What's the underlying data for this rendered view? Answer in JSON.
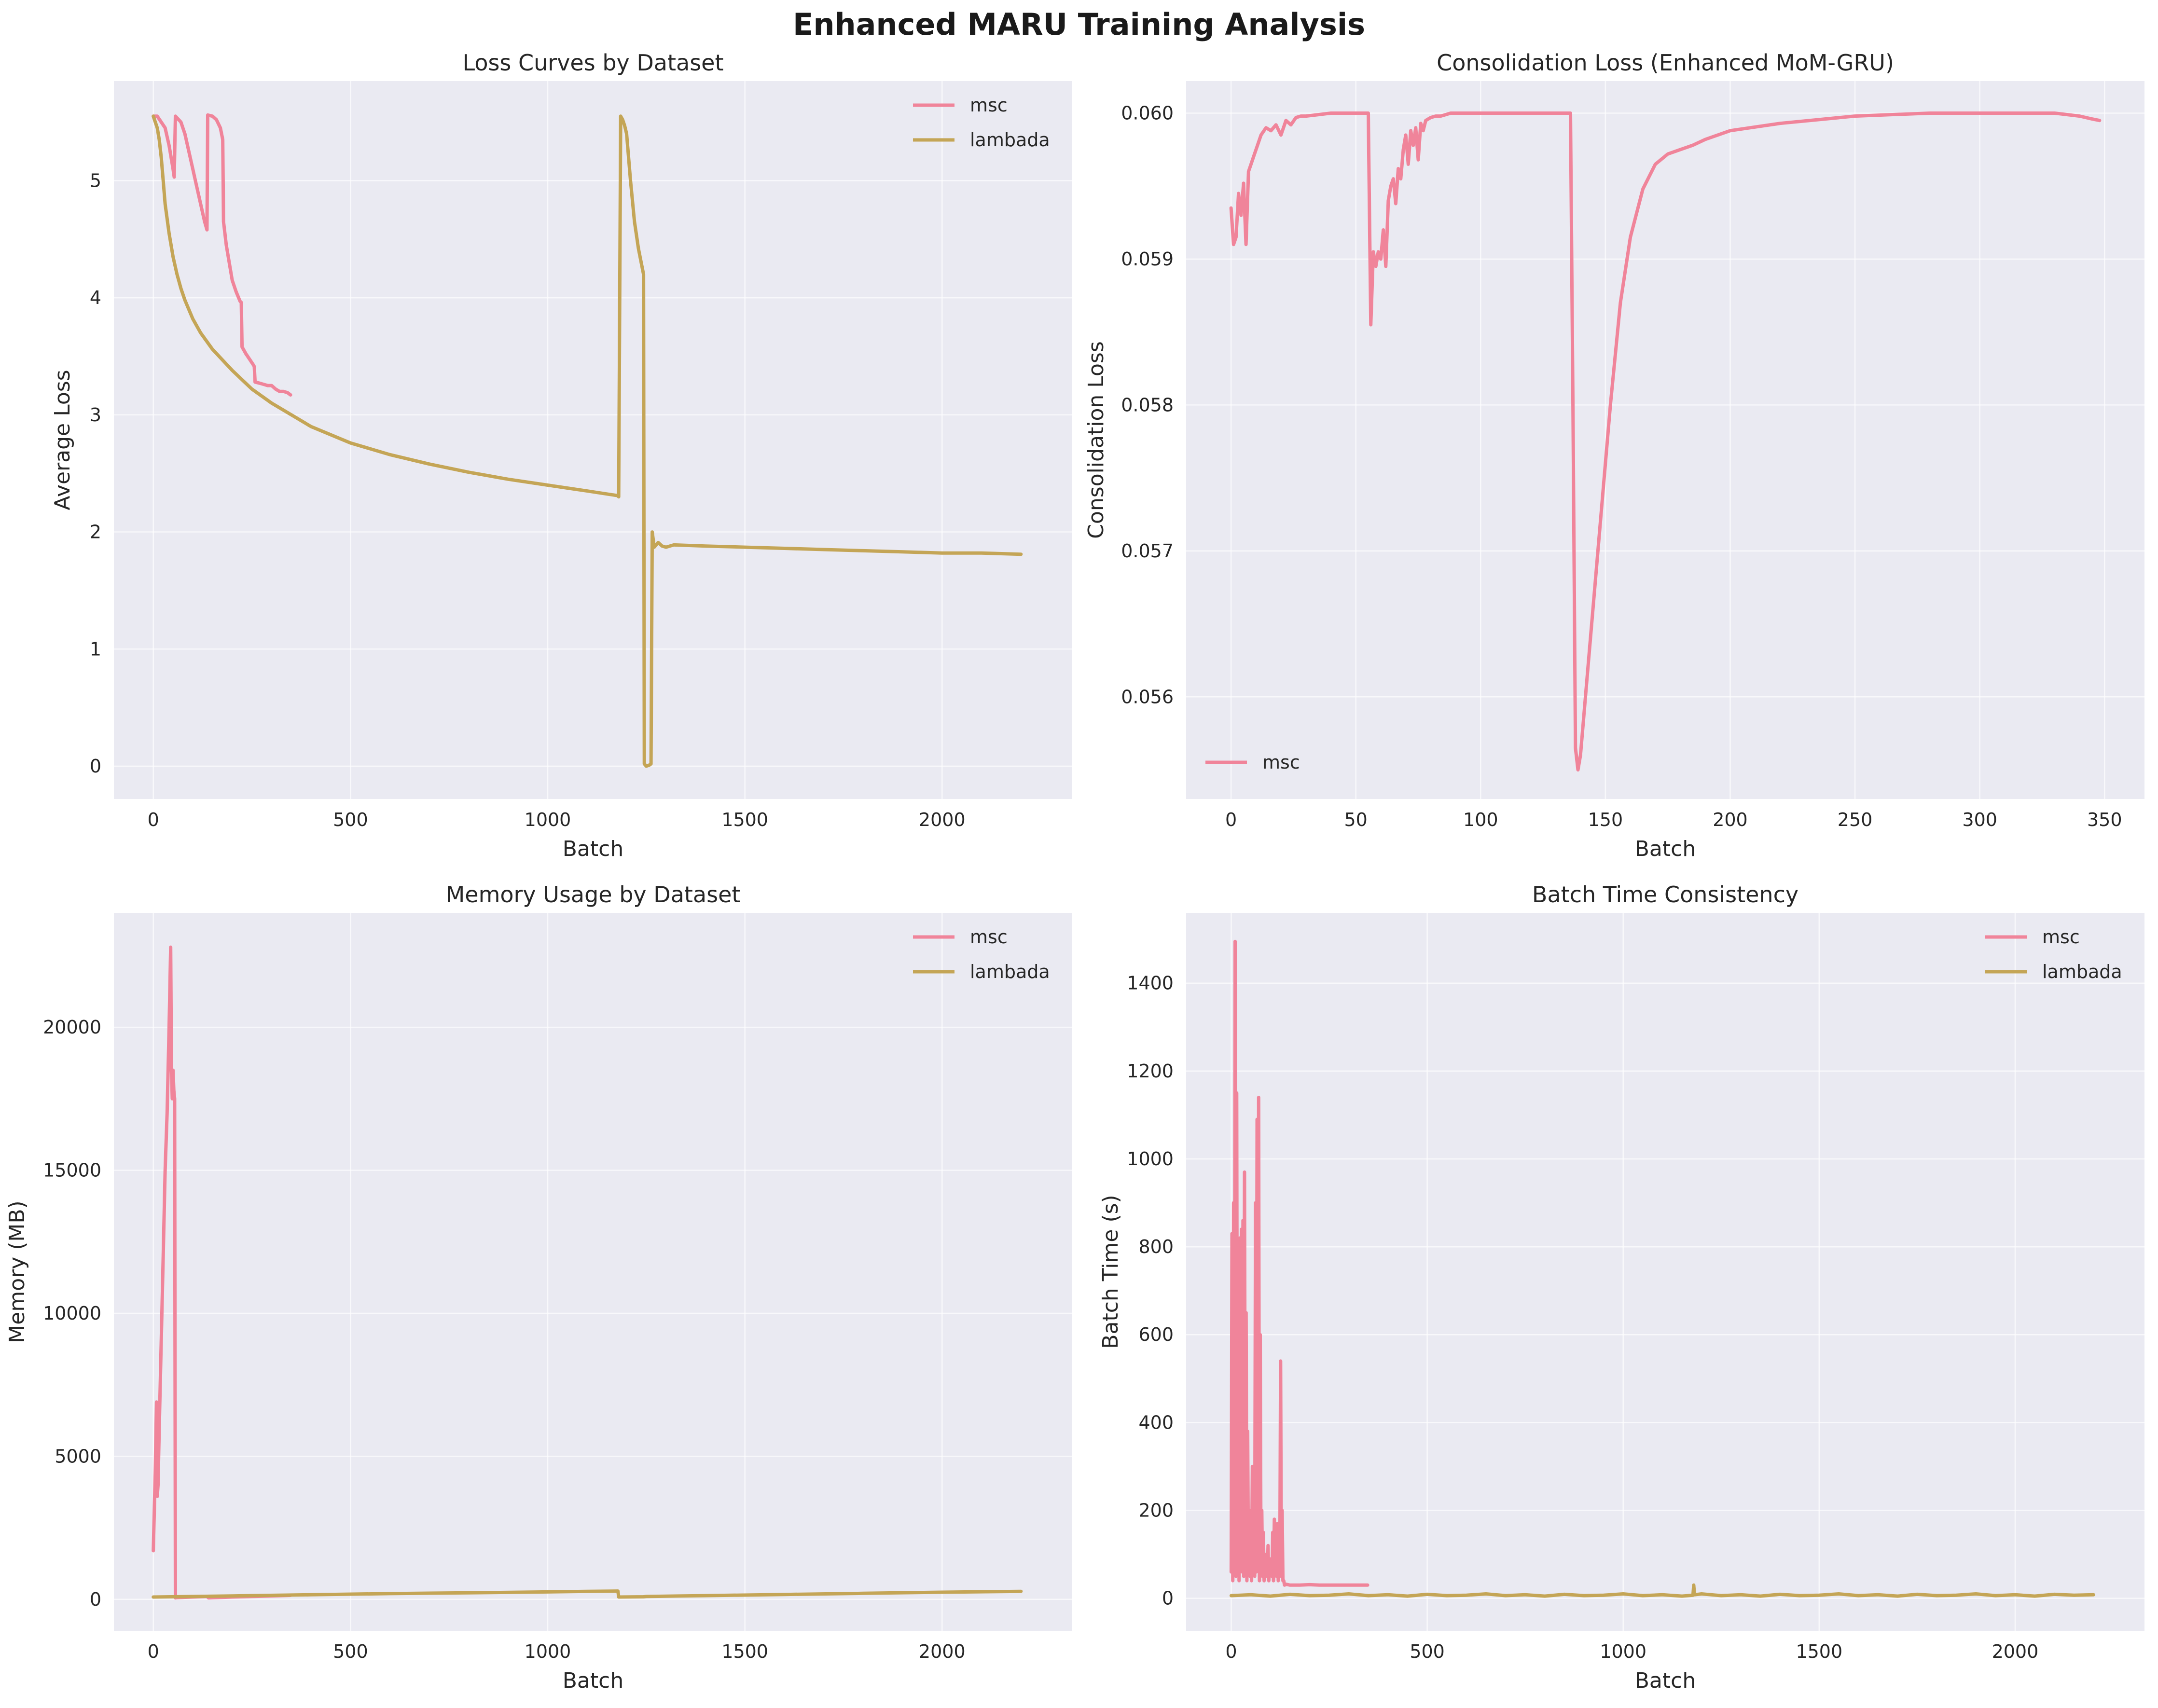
{
  "suptitle": "Enhanced MARU Training Analysis",
  "colors": {
    "msc": "#f0849a",
    "lambada": "#c4a556",
    "panel_bg": "#eaeaf2",
    "grid": "#ffffff",
    "text": "#262626"
  },
  "chart_data": [
    {
      "type": "line",
      "title": "Loss Curves by Dataset",
      "xlabel": "Batch",
      "ylabel": "Average Loss",
      "xlim": [
        -100,
        2330
      ],
      "ylim": [
        -0.28,
        5.85
      ],
      "xticks": [
        0,
        500,
        1000,
        1500,
        2000
      ],
      "yticks": [
        0,
        1,
        2,
        3,
        4,
        5
      ],
      "grid": true,
      "legend": "top-right",
      "series": [
        {
          "name": "msc",
          "color": "#f0849a",
          "x": [
            0,
            10,
            20,
            30,
            40,
            50,
            53,
            56,
            70,
            80,
            90,
            100,
            110,
            120,
            130,
            136,
            138,
            150,
            160,
            170,
            176,
            178,
            185,
            200,
            210,
            220,
            223,
            225,
            235,
            245,
            255,
            256,
            258,
            270,
            280,
            290,
            300,
            310,
            320,
            330,
            340,
            348
          ],
          "y": [
            5.55,
            5.55,
            5.5,
            5.45,
            5.3,
            5.1,
            5.03,
            5.55,
            5.5,
            5.4,
            5.25,
            5.1,
            4.95,
            4.8,
            4.65,
            4.58,
            5.56,
            5.55,
            5.52,
            5.45,
            5.35,
            4.65,
            4.45,
            4.15,
            4.05,
            3.97,
            3.96,
            3.58,
            3.52,
            3.47,
            3.42,
            3.41,
            3.28,
            3.27,
            3.26,
            3.25,
            3.25,
            3.22,
            3.2,
            3.2,
            3.19,
            3.17
          ]
        },
        {
          "name": "lambada",
          "color": "#c4a556",
          "x": [
            0,
            5,
            10,
            15,
            20,
            25,
            30,
            40,
            50,
            60,
            70,
            80,
            100,
            120,
            150,
            200,
            250,
            300,
            400,
            500,
            600,
            700,
            800,
            900,
            1000,
            1100,
            1178,
            1180,
            1185,
            1190,
            1195,
            1200,
            1210,
            1220,
            1230,
            1240,
            1243,
            1245,
            1250,
            1258,
            1262,
            1265,
            1270,
            1280,
            1290,
            1300,
            1310,
            1320,
            1400,
            1500,
            1600,
            1700,
            1800,
            1900,
            2000,
            2100,
            2200
          ],
          "y": [
            5.55,
            5.5,
            5.45,
            5.35,
            5.2,
            5.0,
            4.8,
            4.55,
            4.35,
            4.2,
            4.08,
            3.98,
            3.82,
            3.7,
            3.56,
            3.38,
            3.22,
            3.1,
            2.9,
            2.76,
            2.66,
            2.58,
            2.51,
            2.45,
            2.4,
            2.35,
            2.31,
            2.3,
            5.55,
            5.52,
            5.47,
            5.4,
            5.0,
            4.65,
            4.42,
            4.25,
            4.2,
            0.02,
            0.0,
            0.01,
            0.02,
            2.0,
            1.87,
            1.91,
            1.88,
            1.87,
            1.88,
            1.89,
            1.88,
            1.87,
            1.86,
            1.85,
            1.84,
            1.83,
            1.82,
            1.82,
            1.81
          ]
        }
      ]
    },
    {
      "type": "line",
      "title": "Consolidation Loss (Enhanced MoM-GRU)",
      "xlabel": "Batch",
      "ylabel": "Consolidation Loss",
      "xlim": [
        -18,
        366
      ],
      "ylim": [
        0.0553,
        0.06022
      ],
      "xticks": [
        0,
        50,
        100,
        150,
        200,
        250,
        300,
        350
      ],
      "yticks": [
        0.056,
        0.057,
        0.058,
        0.059,
        0.06
      ],
      "yticklabels": [
        "0.056",
        "0.057",
        "0.058",
        "0.059",
        "0.060"
      ],
      "grid": true,
      "legend": "bottom-left",
      "series": [
        {
          "name": "msc",
          "color": "#f0849a",
          "x": [
            0,
            1,
            2,
            3,
            4,
            5,
            6,
            7,
            8,
            9,
            10,
            12,
            14,
            16,
            18,
            20,
            22,
            24,
            26,
            28,
            30,
            35,
            40,
            45,
            50,
            54,
            55,
            56,
            57,
            58,
            59,
            60,
            61,
            62,
            63,
            64,
            65,
            66,
            67,
            68,
            69,
            70,
            71,
            72,
            73,
            74,
            75,
            76,
            77,
            78,
            80,
            82,
            84,
            86,
            88,
            90,
            95,
            100,
            110,
            120,
            130,
            136,
            137,
            138,
            139,
            140,
            142,
            145,
            148,
            152,
            156,
            160,
            165,
            170,
            175,
            180,
            185,
            190,
            200,
            220,
            250,
            280,
            300,
            320,
            330,
            340,
            345,
            348
          ],
          "y": [
            0.05935,
            0.0591,
            0.05915,
            0.05945,
            0.0593,
            0.05952,
            0.0591,
            0.0596,
            0.05965,
            0.0597,
            0.05975,
            0.05985,
            0.0599,
            0.05988,
            0.05992,
            0.05985,
            0.05995,
            0.05992,
            0.05997,
            0.05998,
            0.05998,
            0.05999,
            0.06,
            0.06,
            0.06,
            0.06,
            0.06,
            0.05855,
            0.05905,
            0.05895,
            0.05905,
            0.059,
            0.0592,
            0.05895,
            0.0594,
            0.0595,
            0.05955,
            0.05938,
            0.05962,
            0.05955,
            0.05975,
            0.05985,
            0.05965,
            0.05988,
            0.05978,
            0.0599,
            0.05968,
            0.05993,
            0.05988,
            0.05995,
            0.05997,
            0.05998,
            0.05998,
            0.05999,
            0.06,
            0.06,
            0.06,
            0.06,
            0.06,
            0.06,
            0.06,
            0.06,
            0.058,
            0.05565,
            0.0555,
            0.0556,
            0.056,
            0.0566,
            0.0572,
            0.058,
            0.0587,
            0.05915,
            0.05948,
            0.05965,
            0.05972,
            0.05975,
            0.05978,
            0.05982,
            0.05988,
            0.05993,
            0.05998,
            0.06,
            0.06,
            0.06,
            0.06,
            0.05998,
            0.05996,
            0.05995
          ]
        }
      ]
    },
    {
      "type": "line",
      "title": "Memory Usage by Dataset",
      "xlabel": "Batch",
      "ylabel": "Memory (MB)",
      "xlim": [
        -100,
        2330
      ],
      "ylim": [
        -1100,
        24000
      ],
      "xticks": [
        0,
        500,
        1000,
        1500,
        2000
      ],
      "yticks": [
        0,
        5000,
        10000,
        15000,
        20000
      ],
      "grid": true,
      "legend": "top-right",
      "series": [
        {
          "name": "msc",
          "color": "#f0849a",
          "x": [
            0,
            5,
            8,
            10,
            12,
            15,
            20,
            25,
            30,
            35,
            40,
            44,
            46,
            48,
            50,
            52,
            54,
            56,
            60,
            100,
            136,
            140,
            200,
            250,
            300,
            348
          ],
          "y": [
            1700,
            4500,
            6900,
            3600,
            4000,
            6000,
            9000,
            12000,
            15000,
            17000,
            20000,
            22800,
            18500,
            17500,
            18500,
            17800,
            17500,
            50,
            60,
            80,
            100,
            50,
            80,
            100,
            120,
            140
          ]
        },
        {
          "name": "lambada",
          "color": "#c4a556",
          "x": [
            0,
            200,
            400,
            600,
            800,
            1000,
            1100,
            1178,
            1180,
            1243,
            1250,
            1400,
            1600,
            1800,
            2000,
            2200
          ],
          "y": [
            80,
            120,
            160,
            200,
            230,
            260,
            280,
            290,
            80,
            90,
            100,
            130,
            170,
            210,
            250,
            280
          ]
        }
      ]
    },
    {
      "type": "line",
      "title": "Batch Time Consistency",
      "xlabel": "Batch",
      "ylabel": "Batch Time (s)",
      "xlim": [
        -115,
        2330
      ],
      "ylim": [
        -74,
        1560
      ],
      "xticks": [
        0,
        500,
        1000,
        1500,
        2000
      ],
      "yticks": [
        0,
        200,
        400,
        600,
        800,
        1000,
        1200,
        1400
      ],
      "grid": true,
      "legend": "top-right",
      "series": [
        {
          "name": "msc",
          "color": "#f0849a",
          "x": [
            0,
            2,
            4,
            6,
            8,
            10,
            12,
            14,
            16,
            18,
            20,
            22,
            24,
            26,
            28,
            30,
            32,
            34,
            36,
            38,
            40,
            42,
            44,
            46,
            48,
            50,
            52,
            54,
            56,
            58,
            60,
            62,
            64,
            66,
            68,
            70,
            72,
            74,
            76,
            78,
            80,
            82,
            84,
            86,
            88,
            90,
            92,
            94,
            96,
            98,
            100,
            102,
            104,
            106,
            108,
            110,
            112,
            114,
            116,
            118,
            120,
            122,
            124,
            126,
            128,
            130,
            132,
            134,
            136,
            140,
            150,
            175,
            200,
            225,
            250,
            275,
            300,
            325,
            348
          ],
          "y": [
            60,
            830,
            40,
            900,
            60,
            1495,
            50,
            1150,
            70,
            650,
            40,
            820,
            100,
            840,
            60,
            860,
            50,
            970,
            80,
            650,
            40,
            380,
            60,
            200,
            50,
            120,
            40,
            300,
            60,
            180,
            50,
            900,
            60,
            1090,
            70,
            1140,
            40,
            600,
            80,
            200,
            50,
            150,
            40,
            100,
            60,
            80,
            50,
            120,
            40,
            90,
            60,
            70,
            50,
            150,
            40,
            180,
            60,
            120,
            50,
            170,
            40,
            120,
            60,
            540,
            50,
            200,
            40,
            40,
            30,
            32,
            30,
            30,
            31,
            30,
            30,
            30,
            30,
            30,
            30
          ]
        },
        {
          "name": "lambada",
          "color": "#c4a556",
          "x": [
            0,
            50,
            100,
            150,
            200,
            250,
            300,
            350,
            400,
            450,
            500,
            550,
            600,
            650,
            700,
            750,
            800,
            850,
            900,
            950,
            1000,
            1050,
            1100,
            1150,
            1178,
            1180,
            1182,
            1200,
            1250,
            1300,
            1350,
            1400,
            1450,
            1500,
            1550,
            1600,
            1650,
            1700,
            1750,
            1800,
            1850,
            1900,
            1950,
            2000,
            2050,
            2100,
            2150,
            2200
          ],
          "y": [
            6,
            8,
            5,
            9,
            6,
            7,
            10,
            6,
            8,
            5,
            9,
            6,
            7,
            10,
            6,
            8,
            5,
            9,
            6,
            7,
            10,
            6,
            8,
            5,
            7,
            30,
            8,
            10,
            6,
            8,
            5,
            9,
            6,
            7,
            10,
            6,
            8,
            5,
            9,
            6,
            7,
            10,
            6,
            8,
            5,
            9,
            7,
            8
          ]
        }
      ]
    }
  ]
}
